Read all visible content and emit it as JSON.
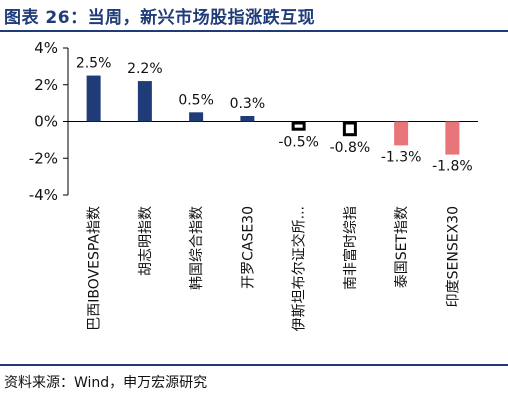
{
  "title": "图表 26：当周，新兴市场股指涨跌互现",
  "source": "资料来源：Wind，申万宏源研究",
  "chart_data": {
    "type": "bar",
    "categories": [
      "巴西IBOVESPA指数",
      "胡志明指数",
      "韩国综合指数",
      "开罗CASE30",
      "伊斯坦布尔证交所...",
      "南非富时综指",
      "泰国SET指数",
      "印度SENSEX30"
    ],
    "values": [
      2.5,
      2.2,
      0.5,
      0.3,
      -0.5,
      -0.8,
      -1.3,
      -1.8
    ],
    "data_labels": [
      "2.5%",
      "2.2%",
      "0.5%",
      "0.3%",
      "-0.5%",
      "-0.8%",
      "-1.3%",
      "-1.8%"
    ],
    "ylim": [
      -4,
      4
    ],
    "yticks": [
      4,
      2,
      0,
      -2,
      -4
    ],
    "ytick_labels": [
      "4%",
      "2%",
      "0%",
      "-2%",
      "-4%"
    ],
    "bar_colors": [
      "#1f3b78",
      "#1f3b78",
      "#1f3b78",
      "#1f3b78",
      "#ffffff",
      "#ffffff",
      "#e8757a",
      "#e8757a"
    ],
    "bar_outline_colors": [
      "#1f3b78",
      "#1f3b78",
      "#1f3b78",
      "#1f3b78",
      "#000000",
      "#000000",
      "#e8757a",
      "#e8757a"
    ],
    "grid": false,
    "legend": "none",
    "xlabel": "",
    "ylabel": ""
  }
}
